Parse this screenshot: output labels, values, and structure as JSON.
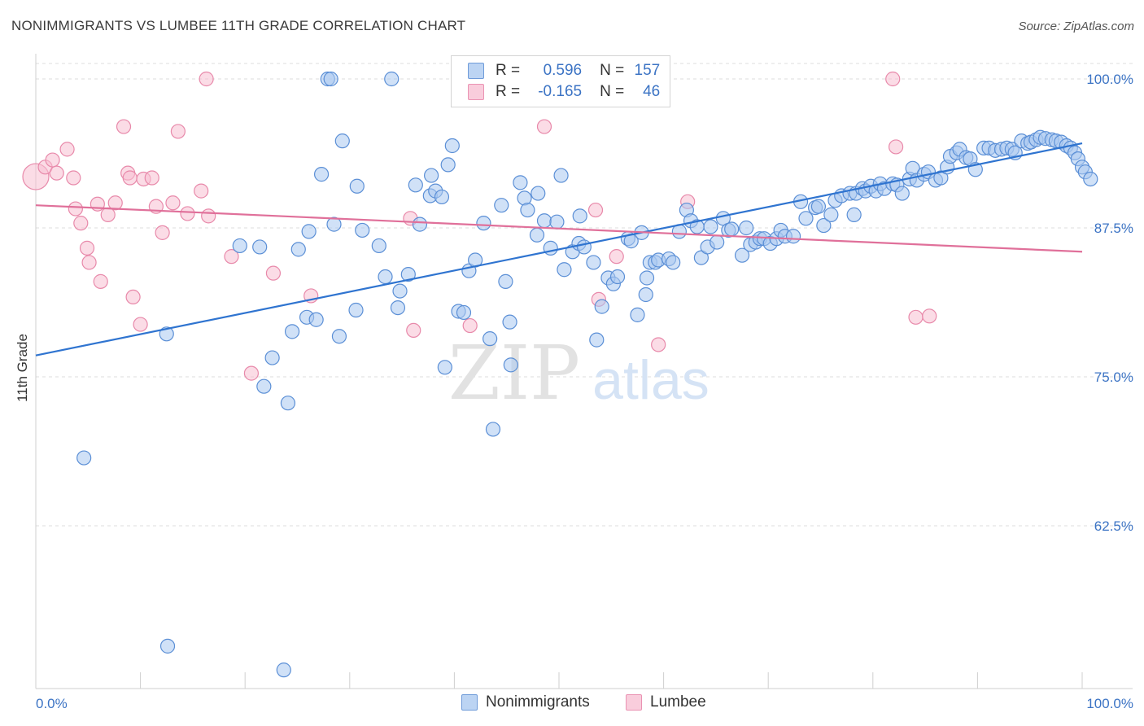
{
  "title": "NONIMMIGRANTS VS LUMBEE 11TH GRADE CORRELATION CHART",
  "source": "Source: ZipAtlas.com",
  "watermark": {
    "zip": "ZIP",
    "atlas": "atlas"
  },
  "legend": {
    "rows": [
      {
        "r_label": "R =",
        "r_value": "0.596",
        "n_label": "N =",
        "n_value": "157"
      },
      {
        "r_label": "R =",
        "r_value": "-0.165",
        "n_label": "N =",
        "n_value": "46"
      }
    ]
  },
  "chart_data": {
    "type": "scatter",
    "xlabel": "",
    "ylabel": "11th Grade",
    "xlim": [
      0,
      100
    ],
    "ylim": [
      50,
      101.2
    ],
    "x_tick_labels": [
      "0.0%",
      "100.0%"
    ],
    "y_ticks": [
      {
        "value": 100,
        "label": "100.0%"
      },
      {
        "value": 87.5,
        "label": "87.5%"
      },
      {
        "value": 75,
        "label": "75.0%"
      },
      {
        "value": 62.5,
        "label": "62.5%"
      }
    ],
    "grid": "horizontal-dashed",
    "legend_position": "top-center",
    "series": [
      {
        "name": "Nonimmigrants",
        "color": "#a9c8f0",
        "stroke": "#5b8fd6",
        "trend_color": "#2f74d0",
        "trend": {
          "x": [
            0,
            100
          ],
          "y": [
            76.8,
            94.6
          ]
        },
        "points": [
          [
            4.6,
            68.2
          ],
          [
            12.5,
            78.6
          ],
          [
            12.6,
            52.4
          ],
          [
            19.5,
            86.0
          ],
          [
            21.4,
            85.9
          ],
          [
            21.8,
            74.2
          ],
          [
            22.6,
            76.6
          ],
          [
            23.7,
            50.4
          ],
          [
            24.1,
            72.8
          ],
          [
            24.5,
            78.8
          ],
          [
            25.1,
            85.7
          ],
          [
            25.9,
            80.0
          ],
          [
            26.1,
            87.2
          ],
          [
            26.8,
            79.8
          ],
          [
            27.3,
            92.0
          ],
          [
            27.9,
            100
          ],
          [
            28.2,
            100
          ],
          [
            28.5,
            87.8
          ],
          [
            29.0,
            78.4
          ],
          [
            29.3,
            94.8
          ],
          [
            30.6,
            80.6
          ],
          [
            30.7,
            91.0
          ],
          [
            31.2,
            87.3
          ],
          [
            32.8,
            86.0
          ],
          [
            33.4,
            83.4
          ],
          [
            34.0,
            100
          ],
          [
            34.6,
            80.8
          ],
          [
            34.8,
            82.2
          ],
          [
            35.6,
            83.6
          ],
          [
            36.3,
            91.1
          ],
          [
            36.7,
            87.8
          ],
          [
            37.7,
            90.2
          ],
          [
            37.8,
            91.9
          ],
          [
            38.2,
            90.6
          ],
          [
            38.8,
            90.1
          ],
          [
            39.1,
            75.8
          ],
          [
            39.4,
            92.8
          ],
          [
            39.8,
            94.4
          ],
          [
            40.4,
            80.5
          ],
          [
            40.9,
            80.4
          ],
          [
            41.4,
            83.9
          ],
          [
            42.0,
            84.8
          ],
          [
            42.8,
            87.9
          ],
          [
            43.4,
            78.2
          ],
          [
            43.7,
            70.6
          ],
          [
            44.5,
            89.4
          ],
          [
            44.9,
            83.0
          ],
          [
            45.3,
            79.6
          ],
          [
            45.4,
            76.0
          ],
          [
            46.3,
            91.3
          ],
          [
            46.7,
            90.0
          ],
          [
            47.0,
            89.0
          ],
          [
            47.9,
            86.9
          ],
          [
            48.0,
            90.4
          ],
          [
            48.6,
            88.1
          ],
          [
            49.2,
            85.8
          ],
          [
            49.8,
            88.0
          ],
          [
            50.2,
            91.9
          ],
          [
            50.5,
            84.0
          ],
          [
            51.3,
            85.5
          ],
          [
            51.9,
            86.2
          ],
          [
            52.0,
            88.5
          ],
          [
            52.4,
            85.9
          ],
          [
            53.3,
            84.6
          ],
          [
            53.6,
            78.1
          ],
          [
            54.1,
            80.9
          ],
          [
            54.7,
            83.3
          ],
          [
            55.2,
            82.8
          ],
          [
            55.6,
            83.4
          ],
          [
            56.6,
            86.6
          ],
          [
            56.9,
            86.4
          ],
          [
            57.5,
            80.2
          ],
          [
            57.9,
            87.1
          ],
          [
            58.3,
            81.9
          ],
          [
            58.4,
            83.3
          ],
          [
            58.7,
            84.6
          ],
          [
            59.2,
            84.6
          ],
          [
            59.5,
            84.8
          ],
          [
            60.5,
            84.9
          ],
          [
            60.9,
            84.6
          ],
          [
            61.5,
            87.2
          ],
          [
            62.2,
            89.0
          ],
          [
            62.6,
            88.1
          ],
          [
            63.2,
            87.6
          ],
          [
            63.6,
            85.0
          ],
          [
            64.2,
            85.9
          ],
          [
            64.5,
            87.6
          ],
          [
            65.1,
            86.3
          ],
          [
            65.7,
            88.3
          ],
          [
            66.2,
            87.3
          ],
          [
            66.5,
            87.4
          ],
          [
            67.5,
            85.2
          ],
          [
            67.9,
            87.5
          ],
          [
            68.3,
            86.1
          ],
          [
            68.8,
            86.3
          ],
          [
            69.2,
            86.6
          ],
          [
            69.6,
            86.6
          ],
          [
            70.2,
            86.2
          ],
          [
            70.8,
            86.6
          ],
          [
            71.2,
            87.3
          ],
          [
            71.6,
            86.8
          ],
          [
            72.4,
            86.8
          ],
          [
            73.1,
            89.7
          ],
          [
            73.6,
            88.3
          ],
          [
            74.5,
            89.2
          ],
          [
            74.8,
            89.3
          ],
          [
            75.3,
            87.7
          ],
          [
            76.0,
            88.6
          ],
          [
            76.4,
            89.8
          ],
          [
            77.0,
            90.2
          ],
          [
            77.8,
            90.4
          ],
          [
            78.2,
            88.6
          ],
          [
            78.4,
            90.4
          ],
          [
            79.0,
            90.8
          ],
          [
            79.3,
            90.6
          ],
          [
            79.8,
            91.0
          ],
          [
            80.3,
            90.6
          ],
          [
            80.7,
            91.2
          ],
          [
            81.1,
            90.8
          ],
          [
            81.9,
            91.2
          ],
          [
            82.3,
            91.1
          ],
          [
            82.8,
            90.4
          ],
          [
            83.5,
            91.6
          ],
          [
            83.8,
            92.5
          ],
          [
            84.2,
            91.5
          ],
          [
            84.9,
            92.0
          ],
          [
            85.3,
            92.2
          ],
          [
            86.0,
            91.5
          ],
          [
            86.5,
            91.7
          ],
          [
            87.1,
            92.6
          ],
          [
            87.4,
            93.5
          ],
          [
            88.0,
            93.8
          ],
          [
            88.3,
            94.1
          ],
          [
            88.9,
            93.4
          ],
          [
            89.3,
            93.3
          ],
          [
            89.8,
            92.4
          ],
          [
            90.6,
            94.2
          ],
          [
            91.1,
            94.2
          ],
          [
            91.7,
            94.0
          ],
          [
            92.3,
            94.1
          ],
          [
            92.8,
            94.2
          ],
          [
            93.3,
            94.1
          ],
          [
            93.6,
            93.8
          ],
          [
            94.2,
            94.8
          ],
          [
            94.8,
            94.6
          ],
          [
            95.1,
            94.7
          ],
          [
            95.6,
            94.9
          ],
          [
            96.0,
            95.1
          ],
          [
            96.5,
            95.0
          ],
          [
            97.1,
            94.9
          ],
          [
            97.5,
            94.8
          ],
          [
            98.0,
            94.7
          ],
          [
            98.5,
            94.4
          ],
          [
            98.9,
            94.2
          ],
          [
            99.3,
            93.8
          ],
          [
            99.6,
            93.3
          ],
          [
            100.0,
            92.6
          ],
          [
            100.3,
            92.2
          ],
          [
            100.8,
            91.6
          ]
        ]
      },
      {
        "name": "Lumbee",
        "color": "#f7bfd2",
        "stroke": "#e889aa",
        "trend_color": "#e0709a",
        "trend": {
          "x": [
            0,
            100
          ],
          "y": [
            89.4,
            85.5
          ]
        },
        "points": [
          [
            0.0,
            91.8
          ],
          [
            0.9,
            92.6
          ],
          [
            1.6,
            93.2
          ],
          [
            2.0,
            92.1
          ],
          [
            3.0,
            94.1
          ],
          [
            3.6,
            91.7
          ],
          [
            3.8,
            89.1
          ],
          [
            4.3,
            87.9
          ],
          [
            4.9,
            85.8
          ],
          [
            5.1,
            84.6
          ],
          [
            5.9,
            89.5
          ],
          [
            6.2,
            83.0
          ],
          [
            6.9,
            88.6
          ],
          [
            7.6,
            89.6
          ],
          [
            8.4,
            96.0
          ],
          [
            8.8,
            92.1
          ],
          [
            9.0,
            91.7
          ],
          [
            9.3,
            81.7
          ],
          [
            10.0,
            79.4
          ],
          [
            10.3,
            91.6
          ],
          [
            11.1,
            91.7
          ],
          [
            11.5,
            89.3
          ],
          [
            12.1,
            87.1
          ],
          [
            13.1,
            89.6
          ],
          [
            13.6,
            95.6
          ],
          [
            14.5,
            88.7
          ],
          [
            15.8,
            90.6
          ],
          [
            16.3,
            100
          ],
          [
            16.5,
            88.5
          ],
          [
            18.7,
            85.1
          ],
          [
            20.6,
            75.3
          ],
          [
            22.7,
            83.7
          ],
          [
            26.3,
            81.8
          ],
          [
            35.8,
            88.3
          ],
          [
            36.1,
            78.9
          ],
          [
            41.5,
            79.3
          ],
          [
            48.6,
            96.0
          ],
          [
            53.5,
            89.0
          ],
          [
            53.8,
            81.5
          ],
          [
            55.5,
            85.1
          ],
          [
            59.5,
            77.7
          ],
          [
            62.3,
            89.7
          ],
          [
            81.9,
            100
          ],
          [
            82.2,
            94.3
          ],
          [
            84.1,
            80.0
          ],
          [
            85.4,
            80.1
          ]
        ]
      }
    ]
  }
}
